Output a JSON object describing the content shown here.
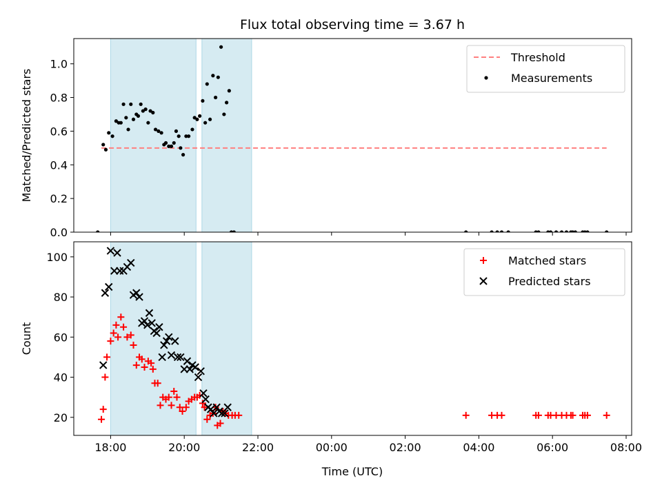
{
  "chart_data": {
    "title": "Flux total observing time = 3.67 h",
    "xlabel": "Time (UTC)",
    "x_ticks": [
      "18:00",
      "20:00",
      "22:00",
      "00:00",
      "02:00",
      "04:00",
      "06:00",
      "08:00"
    ],
    "x_tick_hours": [
      18,
      20,
      22,
      24,
      26,
      28,
      30,
      32
    ],
    "xlim_hours": [
      17.0,
      32.15
    ],
    "shaded_intervals_hours": [
      [
        18.0,
        20.32
      ],
      [
        20.48,
        21.83
      ]
    ],
    "shade_color": "#add8e6",
    "panels": [
      {
        "type": "scatter",
        "ylabel": "Matched/Predicted stars",
        "ylim": [
          0,
          1.15
        ],
        "y_ticks": [
          0.0,
          0.2,
          0.4,
          0.6,
          0.8,
          1.0
        ],
        "y_tick_labels": [
          "0.0",
          "0.2",
          "0.4",
          "0.6",
          "0.8",
          "1.0"
        ],
        "legend": [
          "Threshold",
          "Measurements"
        ],
        "threshold": {
          "name": "Threshold",
          "value": 0.5,
          "x_range_hours": [
            17.75,
            31.47
          ],
          "color": "#ff7f7f",
          "style": "dashed"
        },
        "series": [
          {
            "name": "Measurements",
            "color": "#000000",
            "marker": "dot",
            "points": [
              [
                17.65,
                0.0
              ],
              [
                17.8,
                0.52
              ],
              [
                17.87,
                0.49
              ],
              [
                17.95,
                0.59
              ],
              [
                18.05,
                0.57
              ],
              [
                18.15,
                0.66
              ],
              [
                18.22,
                0.65
              ],
              [
                18.28,
                0.65
              ],
              [
                18.35,
                0.76
              ],
              [
                18.42,
                0.68
              ],
              [
                18.48,
                0.61
              ],
              [
                18.55,
                0.76
              ],
              [
                18.62,
                0.67
              ],
              [
                18.7,
                0.7
              ],
              [
                18.75,
                0.69
              ],
              [
                18.82,
                0.76
              ],
              [
                18.88,
                0.72
              ],
              [
                18.95,
                0.73
              ],
              [
                19.02,
                0.65
              ],
              [
                19.08,
                0.72
              ],
              [
                19.15,
                0.71
              ],
              [
                19.22,
                0.61
              ],
              [
                19.3,
                0.6
              ],
              [
                19.38,
                0.59
              ],
              [
                19.45,
                0.52
              ],
              [
                19.5,
                0.53
              ],
              [
                19.58,
                0.51
              ],
              [
                19.65,
                0.51
              ],
              [
                19.72,
                0.53
              ],
              [
                19.78,
                0.6
              ],
              [
                19.85,
                0.57
              ],
              [
                19.9,
                0.5
              ],
              [
                19.97,
                0.46
              ],
              [
                20.05,
                0.57
              ],
              [
                20.12,
                0.57
              ],
              [
                20.22,
                0.61
              ],
              [
                20.28,
                0.68
              ],
              [
                20.35,
                0.67
              ],
              [
                20.42,
                0.69
              ],
              [
                20.5,
                0.78
              ],
              [
                20.57,
                0.65
              ],
              [
                20.62,
                0.88
              ],
              [
                20.7,
                0.67
              ],
              [
                20.78,
                0.93
              ],
              [
                20.85,
                0.8
              ],
              [
                20.92,
                0.92
              ],
              [
                21.0,
                1.1
              ],
              [
                21.08,
                0.7
              ],
              [
                21.15,
                0.77
              ],
              [
                21.22,
                0.84
              ],
              [
                21.28,
                0.0
              ],
              [
                21.35,
                0.0
              ],
              [
                27.65,
                0.0
              ],
              [
                28.35,
                0.0
              ],
              [
                28.5,
                0.0
              ],
              [
                28.62,
                0.0
              ],
              [
                28.8,
                0.0
              ],
              [
                29.55,
                0.0
              ],
              [
                29.62,
                0.0
              ],
              [
                29.88,
                0.0
              ],
              [
                29.95,
                0.0
              ],
              [
                30.1,
                0.0
              ],
              [
                30.25,
                0.0
              ],
              [
                30.38,
                0.0
              ],
              [
                30.5,
                0.0
              ],
              [
                30.55,
                0.0
              ],
              [
                30.62,
                0.0
              ],
              [
                30.82,
                0.0
              ],
              [
                30.88,
                0.0
              ],
              [
                30.95,
                0.0
              ],
              [
                31.47,
                0.0
              ]
            ]
          }
        ]
      },
      {
        "type": "scatter",
        "ylabel": "Count",
        "ylim": [
          11,
          107.5
        ],
        "y_ticks": [
          20,
          40,
          60,
          80,
          100
        ],
        "y_tick_labels": [
          "20",
          "40",
          "60",
          "80",
          "100"
        ],
        "legend": [
          "Matched stars",
          "Predicted stars"
        ],
        "series": [
          {
            "name": "Matched stars",
            "color": "#ff0000",
            "marker": "plus",
            "points": [
              [
                17.75,
                19
              ],
              [
                17.8,
                24
              ],
              [
                17.85,
                40
              ],
              [
                17.9,
                50
              ],
              [
                18.0,
                58
              ],
              [
                18.08,
                62
              ],
              [
                18.15,
                66
              ],
              [
                18.2,
                60
              ],
              [
                18.28,
                70
              ],
              [
                18.35,
                65
              ],
              [
                18.45,
                60
              ],
              [
                18.55,
                61
              ],
              [
                18.62,
                56
              ],
              [
                18.7,
                46
              ],
              [
                18.78,
                50
              ],
              [
                18.85,
                49
              ],
              [
                18.92,
                45
              ],
              [
                19.02,
                48
              ],
              [
                19.1,
                47
              ],
              [
                19.15,
                44
              ],
              [
                19.2,
                37
              ],
              [
                19.28,
                37
              ],
              [
                19.35,
                26
              ],
              [
                19.42,
                30
              ],
              [
                19.5,
                29
              ],
              [
                19.58,
                30
              ],
              [
                19.65,
                26
              ],
              [
                19.72,
                33
              ],
              [
                19.8,
                30
              ],
              [
                19.88,
                25
              ],
              [
                19.95,
                23
              ],
              [
                20.05,
                25
              ],
              [
                20.12,
                28
              ],
              [
                20.2,
                29
              ],
              [
                20.28,
                30
              ],
              [
                20.35,
                30
              ],
              [
                20.42,
                31
              ],
              [
                20.5,
                27
              ],
              [
                20.55,
                25
              ],
              [
                20.62,
                19
              ],
              [
                20.7,
                21
              ],
              [
                20.78,
                22
              ],
              [
                20.85,
                25
              ],
              [
                20.9,
                16
              ],
              [
                20.98,
                17
              ],
              [
                21.05,
                23
              ],
              [
                21.12,
                22
              ],
              [
                21.2,
                21
              ],
              [
                21.3,
                21
              ],
              [
                21.38,
                21
              ],
              [
                21.48,
                21
              ],
              [
                27.65,
                21
              ],
              [
                28.35,
                21
              ],
              [
                28.5,
                21
              ],
              [
                28.62,
                21
              ],
              [
                29.55,
                21
              ],
              [
                29.62,
                21
              ],
              [
                29.88,
                21
              ],
              [
                29.95,
                21
              ],
              [
                30.1,
                21
              ],
              [
                30.25,
                21
              ],
              [
                30.38,
                21
              ],
              [
                30.5,
                21
              ],
              [
                30.55,
                21
              ],
              [
                30.82,
                21
              ],
              [
                30.88,
                21
              ],
              [
                30.95,
                21
              ],
              [
                31.47,
                21
              ]
            ]
          },
          {
            "name": "Predicted stars",
            "color": "#000000",
            "marker": "x",
            "points": [
              [
                17.8,
                46
              ],
              [
                17.85,
                82
              ],
              [
                17.95,
                85
              ],
              [
                18.0,
                103
              ],
              [
                18.1,
                93
              ],
              [
                18.18,
                102
              ],
              [
                18.25,
                93
              ],
              [
                18.35,
                93
              ],
              [
                18.45,
                95
              ],
              [
                18.55,
                97
              ],
              [
                18.62,
                81
              ],
              [
                18.7,
                82
              ],
              [
                18.78,
                80
              ],
              [
                18.85,
                67
              ],
              [
                18.92,
                68
              ],
              [
                19.0,
                66
              ],
              [
                19.05,
                72
              ],
              [
                19.12,
                67
              ],
              [
                19.18,
                63
              ],
              [
                19.25,
                62
              ],
              [
                19.32,
                65
              ],
              [
                19.4,
                50
              ],
              [
                19.45,
                56
              ],
              [
                19.52,
                58
              ],
              [
                19.58,
                60
              ],
              [
                19.65,
                51
              ],
              [
                19.75,
                58
              ],
              [
                19.82,
                50
              ],
              [
                19.9,
                50
              ],
              [
                20.0,
                44
              ],
              [
                20.08,
                48
              ],
              [
                20.15,
                44
              ],
              [
                20.22,
                46
              ],
              [
                20.3,
                45
              ],
              [
                20.38,
                40
              ],
              [
                20.45,
                43
              ],
              [
                20.52,
                32
              ],
              [
                20.58,
                29
              ],
              [
                20.65,
                25
              ],
              [
                20.72,
                24
              ],
              [
                20.8,
                22
              ],
              [
                20.88,
                25
              ],
              [
                20.95,
                23
              ],
              [
                21.02,
                22
              ],
              [
                21.1,
                22
              ],
              [
                21.18,
                25
              ]
            ]
          }
        ]
      }
    ]
  }
}
